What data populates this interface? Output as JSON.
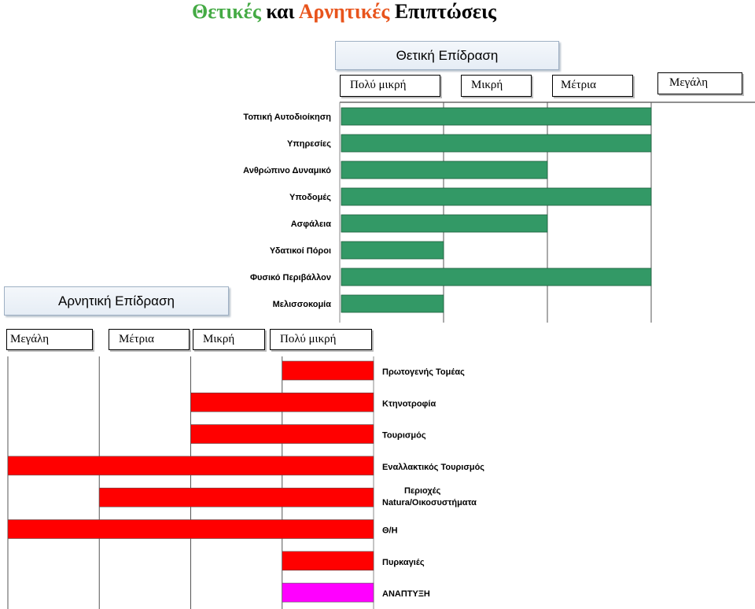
{
  "title": {
    "part1": "Θετικές",
    "part2": "και",
    "part3": "Αρνητικές",
    "part4": "Επιπτώσεις",
    "colors": {
      "part1": "#44AA44",
      "part3": "#E8541C"
    }
  },
  "chart_data": [
    {
      "type": "bar",
      "orientation": "horizontal",
      "title": "Θετική Επίδραση",
      "scale_labels": [
        "Πολύ μικρή",
        "Μικρή",
        "Μέτρια",
        "Μεγάλη"
      ],
      "categories": [
        "Τοπική Αυτοδιοίκηση",
        "Υπηρεσίες",
        "Ανθρώπινο Δυναμικό",
        "Υποδομές",
        "Ασφάλεια",
        "Υδατικοί Πόροι",
        "Φυσικό Περιβάλλον",
        "Μελισσοκομία"
      ],
      "values": [
        3,
        3,
        2,
        3,
        2,
        1,
        3,
        1
      ],
      "xlim": [
        0,
        4
      ],
      "grid": true,
      "bar_color": "#339966"
    },
    {
      "type": "bar",
      "orientation": "horizontal",
      "direction": "right-to-left",
      "title": "Αρνητική Επίδραση",
      "scale_labels": [
        "Μεγάλη",
        "Μέτρια",
        "Μικρή",
        "Πολύ μικρή"
      ],
      "categories": [
        "Πρωτογενής Τομέας",
        "Κτηνοτροφία",
        "Τουρισμός",
        "Εναλλακτικός Τουρισμός",
        "Περιοχές Natura/Οικοσυστήματα",
        "Θ/Η",
        "Πυρκαγιές",
        "ΑΝΑΠΤΥΞΗ"
      ],
      "values": [
        1,
        2,
        2,
        4,
        3,
        4,
        1,
        1
      ],
      "xlim": [
        0,
        4
      ],
      "grid": true,
      "bar_colors": [
        "#FF0000",
        "#FF0000",
        "#FF0000",
        "#FF0000",
        "#FF0000",
        "#FF0000",
        "#FF0000",
        "#FF00FF"
      ]
    }
  ]
}
